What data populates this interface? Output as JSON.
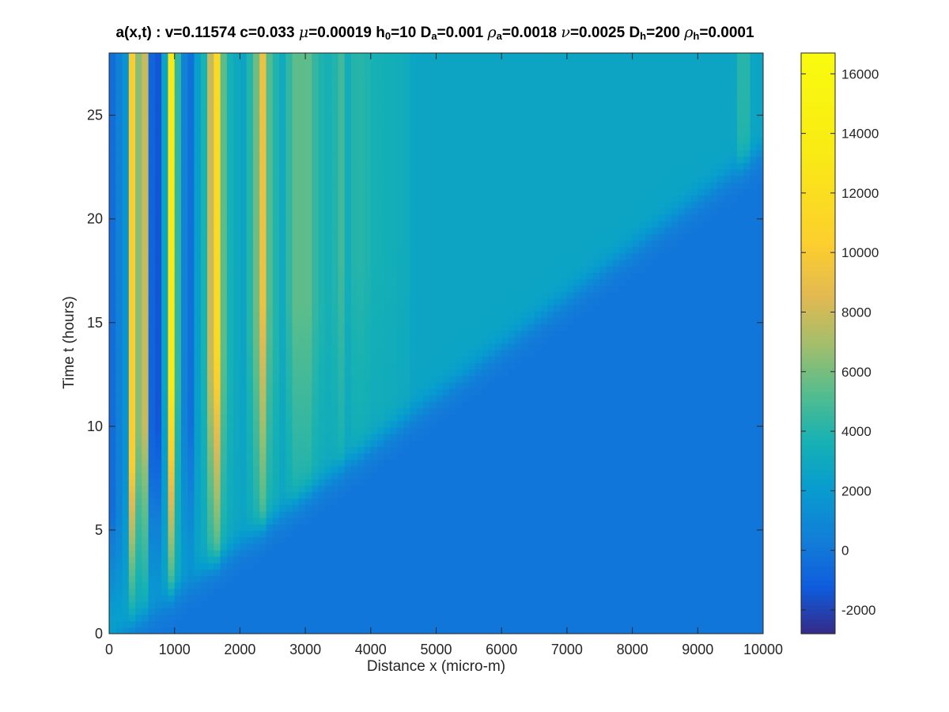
{
  "chart_data": {
    "type": "heatmap",
    "title": {
      "prefix": "a(x,t) :  v=0.11574 c=0.033 ",
      "params": [
        {
          "sym": "μ",
          "greek": true,
          "sub": "",
          "value": "=0.00019 "
        },
        {
          "sym": "h",
          "greek": false,
          "sub": "0",
          "value": "=10 "
        },
        {
          "sym": "D",
          "greek": false,
          "sub": "a",
          "value": "=0.001 "
        },
        {
          "sym": "ρ",
          "greek": true,
          "sub": "a",
          "value": "=0.0018 "
        },
        {
          "sym": "ν",
          "greek": true,
          "sub": "",
          "value": "=0.0025 "
        },
        {
          "sym": "D",
          "greek": false,
          "sub": "h",
          "value": "=200 "
        },
        {
          "sym": "ρ",
          "greek": true,
          "sub": "h",
          "value": "=0.0001"
        }
      ]
    },
    "xlabel": "Distance x (micro-m)",
    "ylabel": "Time t (hours)",
    "xlim": [
      0,
      10000
    ],
    "ylim": [
      0,
      28
    ],
    "xticks": [
      0,
      1000,
      2000,
      3000,
      4000,
      5000,
      6000,
      7000,
      8000,
      9000,
      10000
    ],
    "yticks": [
      0,
      5,
      10,
      15,
      20,
      25
    ],
    "colorbar": {
      "clim": [
        -2800,
        16700
      ],
      "ticks": [
        -2000,
        0,
        2000,
        4000,
        6000,
        8000,
        10000,
        12000,
        14000,
        16000
      ],
      "colormap": "parula"
    },
    "field": {
      "front_speed_x_per_hour": 420,
      "front_offset_x": 200,
      "front_width_x": 150,
      "background_value": 0,
      "wake_value": 2700,
      "stripes": [
        {
          "x": 70,
          "value": -800,
          "t_start": 6
        },
        {
          "x": 150,
          "value": 1500,
          "t_start": 4
        },
        {
          "x": 250,
          "value": -2300,
          "t_start": 8
        },
        {
          "x": 340,
          "value": 16500,
          "t_start": 8
        },
        {
          "x": 420,
          "value": 1500,
          "t_start": 6
        },
        {
          "x": 520,
          "value": 13000,
          "t_start": 10
        },
        {
          "x": 620,
          "value": -1000,
          "t_start": 8
        },
        {
          "x": 720,
          "value": -2400,
          "t_start": 10
        },
        {
          "x": 830,
          "value": 1000,
          "t_start": 8
        },
        {
          "x": 960,
          "value": 16000,
          "t_start": 12
        },
        {
          "x": 1060,
          "value": 2000,
          "t_start": 10
        },
        {
          "x": 1150,
          "value": 500,
          "t_start": 10
        },
        {
          "x": 1250,
          "value": -500,
          "t_start": 10
        },
        {
          "x": 1400,
          "value": 3000,
          "t_start": 10
        },
        {
          "x": 1550,
          "value": 7000,
          "t_start": 13
        },
        {
          "x": 1650,
          "value": 12500,
          "t_start": 14
        },
        {
          "x": 1800,
          "value": 4000,
          "t_start": 12
        },
        {
          "x": 1950,
          "value": 3000,
          "t_start": 12
        },
        {
          "x": 2100,
          "value": 2500,
          "t_start": 12
        },
        {
          "x": 2200,
          "value": 5500,
          "t_start": 14
        },
        {
          "x": 2350,
          "value": 9500,
          "t_start": 16
        },
        {
          "x": 2500,
          "value": 4500,
          "t_start": 14
        },
        {
          "x": 2650,
          "value": 3000,
          "t_start": 14
        },
        {
          "x": 2800,
          "value": 5000,
          "t_start": 16
        },
        {
          "x": 2900,
          "value": 6000,
          "t_start": 16
        },
        {
          "x": 3050,
          "value": 5500,
          "t_start": 16
        },
        {
          "x": 3200,
          "value": 4500,
          "t_start": 16
        },
        {
          "x": 3400,
          "value": 4000,
          "t_start": 16
        },
        {
          "x": 3550,
          "value": 4800,
          "t_start": 18
        },
        {
          "x": 3750,
          "value": 4000,
          "t_start": 18
        },
        {
          "x": 3900,
          "value": 4500,
          "t_start": 18
        },
        {
          "x": 4100,
          "value": 4000,
          "t_start": 18
        },
        {
          "x": 4300,
          "value": 3800,
          "t_start": 18
        },
        {
          "x": 4500,
          "value": 3500,
          "t_start": 19
        },
        {
          "x": 9700,
          "value": 4800,
          "t_start": 26
        }
      ]
    }
  }
}
